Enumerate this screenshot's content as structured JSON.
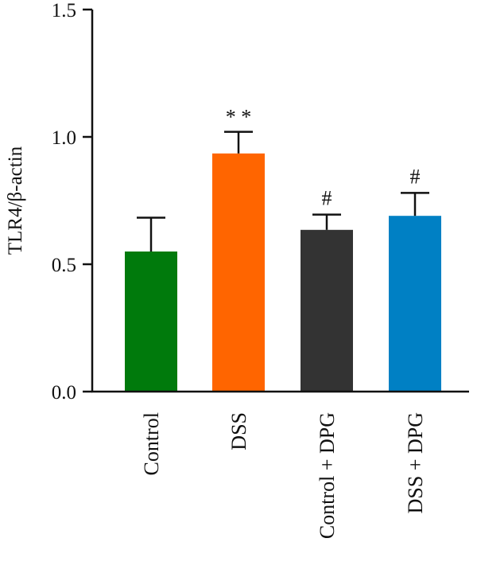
{
  "chart_data": {
    "type": "bar",
    "title": "",
    "xlabel": "",
    "ylabel": "TLR4/β-actin",
    "ylim": [
      0,
      1.5
    ],
    "yticks": [
      {
        "value": 0.0,
        "label": "0.0"
      },
      {
        "value": 0.5,
        "label": "0.5"
      },
      {
        "value": 1.0,
        "label": "1.0"
      },
      {
        "value": 1.5,
        "label": "1.5"
      }
    ],
    "categories": [
      "Control",
      "DSS",
      "Control + DPG",
      "DSS + DPG"
    ],
    "values": [
      0.55,
      0.935,
      0.635,
      0.69
    ],
    "errors": [
      0.133,
      0.085,
      0.06,
      0.09
    ],
    "colors": [
      "#007a0c",
      "#ff6500",
      "#333333",
      "#0080c4"
    ],
    "annotations": [
      "",
      "* *",
      "#",
      "#"
    ],
    "grid": false,
    "legend": "none"
  }
}
